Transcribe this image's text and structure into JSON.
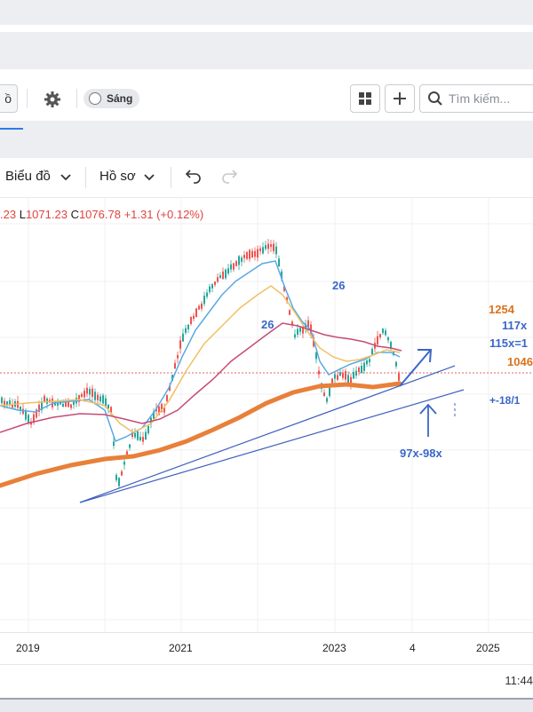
{
  "topbar": {
    "left_partial_label": "ồ",
    "theme_toggle_label": "Sáng",
    "search_placeholder": "Tìm kiếm..."
  },
  "toolbar": {
    "chart_menu": "Biểu đồ",
    "profile_menu": "Hồ sơ"
  },
  "ohlc": {
    "open_partial": ".23",
    "low_key": "L",
    "low": "1071.23",
    "close_key": "C",
    "close": "1076.78",
    "change": "+1.31 (+0.12%)"
  },
  "annotations": {
    "label_26_top": "26",
    "label_26_mid": "26",
    "level_1254": "1254",
    "level_117x": "117x",
    "level_115x": "115x=1",
    "level_1046": "1046",
    "level_minus": "+-18/1",
    "support_zone": "97x-98x"
  },
  "xaxis": {
    "labels": [
      "2019",
      "2021",
      "2023",
      "4",
      "2025"
    ]
  },
  "footer": {
    "time": "11:44"
  },
  "colors": {
    "up_candle": "#26a69a",
    "down_candle": "#ef5350",
    "ma200": "#e8803a",
    "ma100": "#c64b77",
    "ma50": "#f0c063",
    "ma20": "#5aa9e6",
    "trendline": "#3f5fbf",
    "annotation_blue": "#3a66c8",
    "annotation_orange": "#d9731d"
  }
}
